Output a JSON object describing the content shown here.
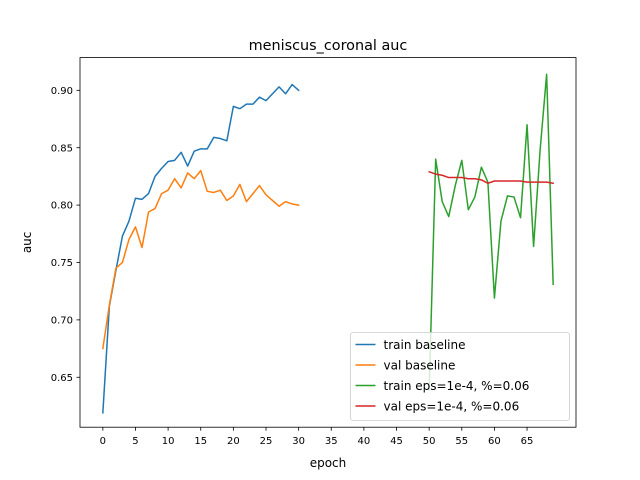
{
  "chart_data": {
    "type": "line",
    "title": "meniscus_coronal auc",
    "xlabel": "epoch",
    "ylabel": "auc",
    "xlim": [
      -3.5,
      72.5
    ],
    "ylim": [
      0.6065,
      0.9285
    ],
    "xticks": [
      0,
      5,
      10,
      15,
      20,
      25,
      30,
      35,
      40,
      45,
      50,
      55,
      60,
      65
    ],
    "yticks": [
      0.65,
      0.7,
      0.75,
      0.8,
      0.85,
      0.9
    ],
    "ytick_labels": [
      "0.65",
      "0.70",
      "0.75",
      "0.80",
      "0.85",
      "0.90"
    ],
    "grid": false,
    "legend_position": "lower right",
    "series": [
      {
        "name": "train baseline",
        "color": "#1f77b4",
        "x": [
          0,
          1,
          2,
          3,
          4,
          5,
          6,
          7,
          8,
          9,
          10,
          11,
          12,
          13,
          14,
          15,
          16,
          17,
          18,
          19,
          20,
          21,
          22,
          23,
          24,
          25,
          26,
          27,
          28,
          29,
          30
        ],
        "y": [
          0.619,
          0.712,
          0.743,
          0.773,
          0.786,
          0.806,
          0.805,
          0.81,
          0.825,
          0.832,
          0.838,
          0.839,
          0.846,
          0.834,
          0.847,
          0.849,
          0.849,
          0.859,
          0.858,
          0.856,
          0.886,
          0.884,
          0.888,
          0.888,
          0.894,
          0.891,
          0.897,
          0.903,
          0.897,
          0.905,
          0.9
        ]
      },
      {
        "name": "val baseline",
        "color": "#ff7f0e",
        "x": [
          0,
          1,
          2,
          3,
          4,
          5,
          6,
          7,
          8,
          9,
          10,
          11,
          12,
          13,
          14,
          15,
          16,
          17,
          18,
          19,
          20,
          21,
          22,
          23,
          24,
          25,
          26,
          27,
          28,
          29,
          30
        ],
        "y": [
          0.675,
          0.713,
          0.745,
          0.75,
          0.77,
          0.781,
          0.763,
          0.794,
          0.797,
          0.81,
          0.813,
          0.823,
          0.815,
          0.828,
          0.823,
          0.83,
          0.812,
          0.811,
          0.813,
          0.804,
          0.808,
          0.818,
          0.803,
          0.81,
          0.817,
          0.809,
          0.804,
          0.799,
          0.803,
          0.801,
          0.8
        ]
      },
      {
        "name": "train eps=1e-4, %=0.06",
        "color": "#2ca02c",
        "x": [
          50,
          51,
          52,
          53,
          54,
          55,
          56,
          57,
          58,
          59,
          60,
          61,
          62,
          63,
          64,
          65,
          66,
          67,
          68,
          69
        ],
        "y": [
          0.639,
          0.84,
          0.803,
          0.79,
          0.817,
          0.839,
          0.796,
          0.807,
          0.833,
          0.82,
          0.719,
          0.786,
          0.808,
          0.807,
          0.789,
          0.87,
          0.764,
          0.848,
          0.914,
          0.731
        ]
      },
      {
        "name": "val eps=1e-4, %=0.06",
        "color": "#d62728",
        "x": [
          50,
          51,
          52,
          53,
          54,
          55,
          56,
          57,
          58,
          59,
          60,
          61,
          62,
          63,
          64,
          65,
          66,
          67,
          68,
          69
        ],
        "y": [
          0.829,
          0.827,
          0.826,
          0.824,
          0.824,
          0.824,
          0.823,
          0.823,
          0.822,
          0.819,
          0.821,
          0.821,
          0.821,
          0.821,
          0.821,
          0.82,
          0.82,
          0.82,
          0.82,
          0.819
        ]
      }
    ]
  }
}
